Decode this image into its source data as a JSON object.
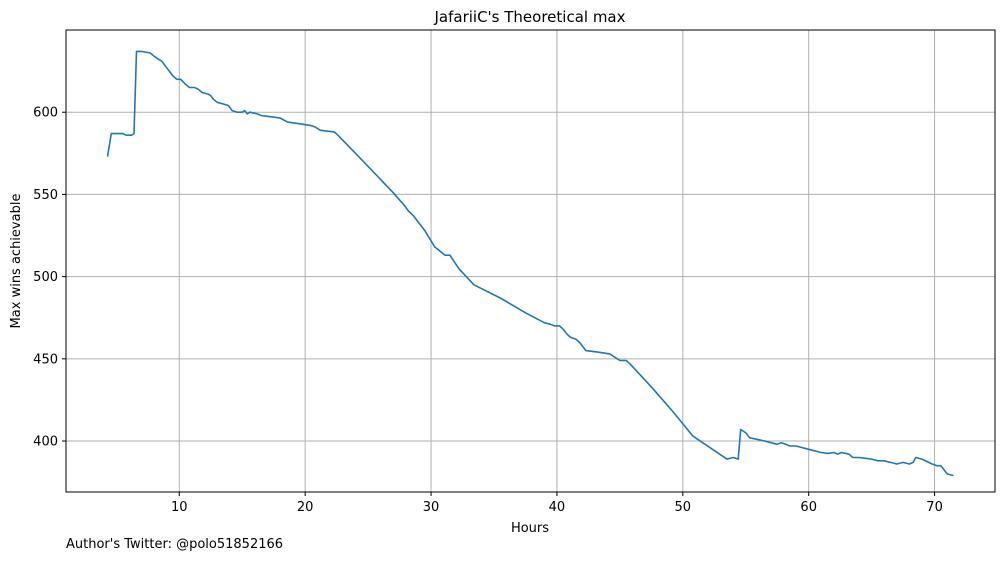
{
  "chart_data": {
    "type": "line",
    "title": "JafariiC's Theoretical max",
    "xlabel": "Hours",
    "ylabel": "Max wins achievable",
    "xlim": [
      1.0,
      74.8
    ],
    "ylim": [
      369,
      650
    ],
    "xticks": [
      10,
      20,
      30,
      40,
      50,
      60,
      70
    ],
    "yticks": [
      400,
      450,
      500,
      550,
      600
    ],
    "grid": true,
    "series": [
      {
        "color": "#1f77b4",
        "points": [
          [
            4.3,
            573
          ],
          [
            4.6,
            587
          ],
          [
            5.5,
            587
          ],
          [
            5.8,
            586
          ],
          [
            6.2,
            586
          ],
          [
            6.4,
            587
          ],
          [
            6.6,
            637
          ],
          [
            7.0,
            637
          ],
          [
            7.7,
            636
          ],
          [
            8.0,
            634
          ],
          [
            8.6,
            631
          ],
          [
            9.0,
            627
          ],
          [
            9.5,
            622
          ],
          [
            9.8,
            620
          ],
          [
            10.1,
            620
          ],
          [
            10.5,
            617
          ],
          [
            10.8,
            615
          ],
          [
            11.2,
            615
          ],
          [
            11.5,
            614
          ],
          [
            11.8,
            612
          ],
          [
            12.3,
            611
          ],
          [
            12.5,
            610
          ],
          [
            12.7,
            608
          ],
          [
            13.0,
            606
          ],
          [
            13.5,
            605
          ],
          [
            13.9,
            604
          ],
          [
            14.2,
            601
          ],
          [
            14.6,
            600
          ],
          [
            15.0,
            600
          ],
          [
            15.2,
            601
          ],
          [
            15.4,
            599
          ],
          [
            15.6,
            600
          ],
          [
            16.2,
            599
          ],
          [
            16.5,
            598
          ],
          [
            17.0,
            597.5
          ],
          [
            18.0,
            596.5
          ],
          [
            18.6,
            594
          ],
          [
            19.5,
            593
          ],
          [
            20.4,
            592
          ],
          [
            20.8,
            591
          ],
          [
            21.2,
            589
          ],
          [
            22.3,
            588
          ],
          [
            22.6,
            586
          ],
          [
            24.0,
            575
          ],
          [
            25.5,
            563
          ],
          [
            27.0,
            551
          ],
          [
            27.8,
            544
          ],
          [
            28.2,
            540
          ],
          [
            28.6,
            537
          ],
          [
            29.5,
            528
          ],
          [
            30.3,
            518
          ],
          [
            30.8,
            515
          ],
          [
            31.1,
            513
          ],
          [
            31.5,
            513
          ],
          [
            32.2,
            505
          ],
          [
            33.4,
            495
          ],
          [
            35.5,
            487
          ],
          [
            37.5,
            478
          ],
          [
            38.5,
            474
          ],
          [
            39.0,
            472
          ],
          [
            39.5,
            471
          ],
          [
            39.8,
            470
          ],
          [
            40.2,
            470
          ],
          [
            40.5,
            468
          ],
          [
            40.8,
            465
          ],
          [
            41.1,
            463
          ],
          [
            41.5,
            462
          ],
          [
            41.8,
            460
          ],
          [
            42.3,
            455
          ],
          [
            43.3,
            454
          ],
          [
            44.2,
            453
          ],
          [
            45.0,
            449
          ],
          [
            45.5,
            449
          ],
          [
            45.8,
            447
          ],
          [
            47.5,
            433
          ],
          [
            49.2,
            418
          ],
          [
            50.8,
            403
          ],
          [
            53.5,
            389
          ],
          [
            54.0,
            390
          ],
          [
            54.4,
            389
          ],
          [
            54.6,
            407
          ],
          [
            55.0,
            405
          ],
          [
            55.3,
            402
          ],
          [
            56.5,
            400
          ],
          [
            57.5,
            398
          ],
          [
            57.8,
            399
          ],
          [
            58.2,
            398
          ],
          [
            58.5,
            397
          ],
          [
            59.0,
            397
          ],
          [
            60.0,
            395
          ],
          [
            61.0,
            393
          ],
          [
            61.5,
            392.5
          ],
          [
            62.0,
            393
          ],
          [
            62.3,
            392
          ],
          [
            62.6,
            393
          ],
          [
            63.2,
            392
          ],
          [
            63.5,
            390
          ],
          [
            64.0,
            390
          ],
          [
            65.0,
            389
          ],
          [
            65.5,
            388
          ],
          [
            66.0,
            388
          ],
          [
            66.5,
            387
          ],
          [
            67.0,
            386
          ],
          [
            67.5,
            387
          ],
          [
            68.0,
            386
          ],
          [
            68.3,
            387
          ],
          [
            68.5,
            390
          ],
          [
            69.0,
            389
          ],
          [
            69.8,
            386
          ],
          [
            70.2,
            385
          ],
          [
            70.5,
            385
          ],
          [
            71.0,
            380
          ],
          [
            71.5,
            379
          ]
        ]
      }
    ]
  },
  "footer": {
    "text": "Author's Twitter: @polo51852166"
  }
}
